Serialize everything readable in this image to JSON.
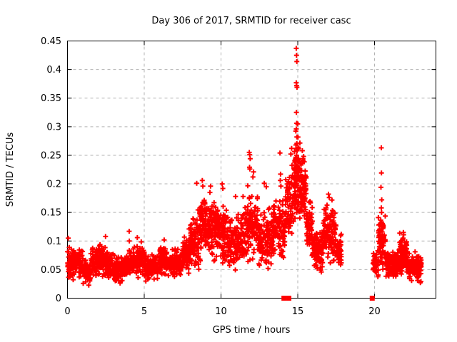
{
  "page": {
    "background": "#ffffff",
    "kind": "gnuplot-style scatter plot image"
  },
  "chart_data": {
    "type": "scatter",
    "title": "Day 306 of 2017, SRMTID for receiver casc",
    "xlabel": "GPS time / hours",
    "ylabel": "SRMTID / TECUs",
    "xlim": [
      0,
      24
    ],
    "ylim": [
      0,
      0.45
    ],
    "grid": {
      "show": true,
      "style": "dashed",
      "color": "#b3b3b3"
    },
    "axis_color": "#000000",
    "marker": {
      "shape": "plus",
      "color": "#ff0000",
      "size": 7,
      "stroke": 2
    },
    "xticks": [
      [
        0,
        "0"
      ],
      [
        5,
        "5"
      ],
      [
        10,
        "10"
      ],
      [
        15,
        "15"
      ],
      [
        20,
        "20"
      ]
    ],
    "yticks": [
      [
        0,
        "0"
      ],
      [
        0.05,
        "0.05"
      ],
      [
        0.1,
        "0.1"
      ],
      [
        0.15,
        "0.15"
      ],
      [
        0.2,
        "0.2"
      ],
      [
        0.25,
        "0.25"
      ],
      [
        0.3,
        "0.3"
      ],
      [
        0.35,
        "0.35"
      ],
      [
        0.4,
        "0.4"
      ],
      [
        0.45,
        "0.45"
      ]
    ],
    "seed": 42,
    "series": [
      {
        "name": "srmtid",
        "marker": "plus",
        "color": "#ff0000",
        "bands_note": "approximate dense scatter: [x_start, x_end, n_points, y_min, y_max]",
        "bands": [
          [
            0.0,
            0.5,
            68,
            0.025,
            0.1
          ],
          [
            0.5,
            1.0,
            68,
            0.03,
            0.09
          ],
          [
            1.0,
            1.5,
            68,
            0.02,
            0.075
          ],
          [
            1.5,
            2.0,
            68,
            0.03,
            0.095
          ],
          [
            2.0,
            2.5,
            68,
            0.03,
            0.105
          ],
          [
            2.5,
            3.0,
            68,
            0.025,
            0.09
          ],
          [
            3.0,
            3.5,
            68,
            0.02,
            0.08
          ],
          [
            3.5,
            4.0,
            68,
            0.025,
            0.085
          ],
          [
            4.0,
            4.5,
            68,
            0.03,
            0.095
          ],
          [
            4.5,
            5.0,
            68,
            0.03,
            0.105
          ],
          [
            5.0,
            5.5,
            68,
            0.02,
            0.08
          ],
          [
            5.5,
            6.0,
            68,
            0.025,
            0.085
          ],
          [
            6.0,
            6.5,
            68,
            0.03,
            0.1
          ],
          [
            6.5,
            7.0,
            68,
            0.03,
            0.09
          ],
          [
            7.0,
            7.5,
            68,
            0.03,
            0.095
          ],
          [
            7.5,
            8.0,
            68,
            0.035,
            0.12
          ],
          [
            8.0,
            8.6,
            80,
            0.04,
            0.16
          ],
          [
            8.6,
            9.0,
            70,
            0.05,
            0.2
          ],
          [
            9.0,
            9.6,
            90,
            0.05,
            0.19
          ],
          [
            9.6,
            10.4,
            110,
            0.05,
            0.18
          ],
          [
            10.4,
            11.4,
            130,
            0.04,
            0.16
          ],
          [
            11.4,
            12.4,
            130,
            0.05,
            0.2
          ],
          [
            12.4,
            13.4,
            130,
            0.04,
            0.17
          ],
          [
            13.4,
            14.2,
            110,
            0.06,
            0.19
          ],
          [
            14.2,
            14.75,
            70,
            0.07,
            0.25
          ],
          [
            14.75,
            15.15,
            90,
            0.1,
            0.33
          ],
          [
            15.15,
            15.55,
            70,
            0.12,
            0.27
          ],
          [
            15.55,
            15.95,
            70,
            0.07,
            0.18
          ],
          [
            15.95,
            16.65,
            110,
            0.035,
            0.13
          ],
          [
            16.65,
            17.5,
            120,
            0.05,
            0.185
          ],
          [
            17.5,
            17.85,
            50,
            0.045,
            0.12
          ],
          [
            19.9,
            20.25,
            45,
            0.03,
            0.09
          ],
          [
            20.25,
            20.7,
            70,
            0.04,
            0.16
          ],
          [
            20.7,
            21.6,
            120,
            0.025,
            0.09
          ],
          [
            21.6,
            22.1,
            90,
            0.03,
            0.12
          ],
          [
            22.1,
            23.05,
            130,
            0.025,
            0.085
          ]
        ],
        "outliers": [
          [
            0.05,
            0.105
          ],
          [
            2.48,
            0.108
          ],
          [
            4.02,
            0.117
          ],
          [
            4.03,
            0.1
          ],
          [
            4.55,
            0.106
          ],
          [
            6.3,
            0.102
          ],
          [
            7.92,
            0.121
          ],
          [
            8.42,
            0.201
          ],
          [
            8.78,
            0.206
          ],
          [
            8.82,
            0.196
          ],
          [
            9.32,
            0.196
          ],
          [
            9.28,
            0.185
          ],
          [
            10.08,
            0.2
          ],
          [
            10.12,
            0.192
          ],
          [
            10.95,
            0.178
          ],
          [
            11.84,
            0.255
          ],
          [
            11.87,
            0.251
          ],
          [
            11.9,
            0.244
          ],
          [
            11.86,
            0.229
          ],
          [
            11.88,
            0.226
          ],
          [
            12.12,
            0.221
          ],
          [
            12.08,
            0.212
          ],
          [
            12.82,
            0.201
          ],
          [
            12.95,
            0.195
          ],
          [
            13.84,
            0.254
          ],
          [
            13.88,
            0.217
          ],
          [
            13.86,
            0.206
          ],
          [
            13.9,
            0.196
          ],
          [
            14.55,
            0.252
          ],
          [
            14.6,
            0.262
          ],
          [
            14.9,
            0.437
          ],
          [
            14.92,
            0.425
          ],
          [
            14.94,
            0.414
          ],
          [
            14.9,
            0.377
          ],
          [
            14.93,
            0.372
          ],
          [
            14.95,
            0.369
          ],
          [
            14.91,
            0.325
          ],
          [
            14.93,
            0.306
          ],
          [
            14.9,
            0.296
          ],
          [
            14.94,
            0.282
          ],
          [
            14.88,
            0.268
          ],
          [
            14.96,
            0.258
          ],
          [
            15.05,
            0.262
          ],
          [
            15.3,
            0.258
          ],
          [
            15.38,
            0.248
          ],
          [
            17.0,
            0.182
          ],
          [
            17.05,
            0.176
          ],
          [
            20.44,
            0.263
          ],
          [
            20.45,
            0.219
          ],
          [
            20.42,
            0.194
          ],
          [
            20.47,
            0.172
          ],
          [
            20.44,
            0.158
          ],
          [
            20.46,
            0.15
          ],
          [
            21.88,
            0.115
          ],
          [
            21.9,
            0.111
          ],
          [
            21.86,
            0.105
          ]
        ]
      },
      {
        "name": "zero-flags",
        "marker": "square",
        "color": "#ff0000",
        "points": [
          [
            14.1,
            0
          ],
          [
            14.42,
            0
          ],
          [
            19.85,
            0
          ]
        ]
      }
    ]
  }
}
